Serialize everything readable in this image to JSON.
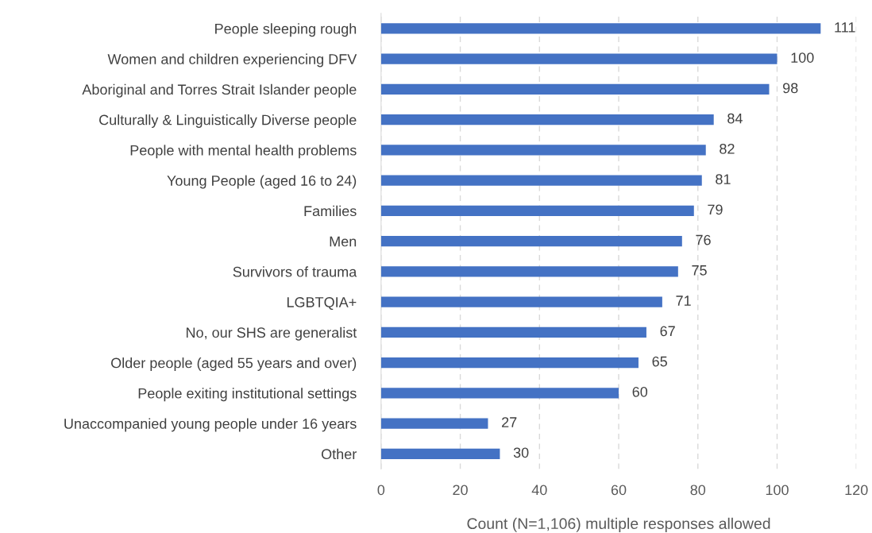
{
  "chart_data": {
    "type": "bar",
    "orientation": "horizontal",
    "xlabel": "Count (N=1,106) multiple responses allowed",
    "categories": [
      "People sleeping rough",
      "Women and children experiencing DFV",
      "Aboriginal and Torres Strait Islander people",
      "Culturally & Linguistically Diverse people",
      "People with mental health problems",
      "Young People (aged 16 to 24)",
      "Families",
      "Men",
      "Survivors of trauma",
      "LGBTQIA+",
      "No, our SHS are generalist",
      "Older people (aged 55 years and over)",
      "People exiting institutional settings",
      "Unaccompanied young people under 16 years",
      "Other"
    ],
    "values": [
      111,
      100,
      98,
      84,
      82,
      81,
      79,
      76,
      75,
      71,
      67,
      65,
      60,
      27,
      30
    ],
    "color": "#4472c4",
    "xlim": [
      0,
      120
    ],
    "xticks": [
      0,
      20,
      40,
      60,
      80,
      100,
      120
    ],
    "grid": "x",
    "data_labels": true,
    "legend": false
  }
}
